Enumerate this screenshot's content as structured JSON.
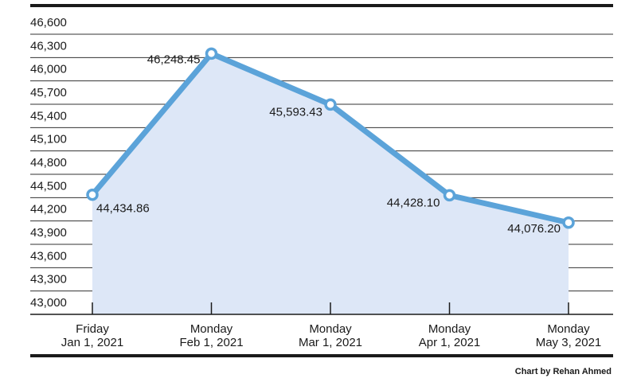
{
  "chart_data": {
    "type": "area",
    "title": "",
    "xlabel": "",
    "ylabel": "",
    "categories": [
      [
        "Friday",
        "Jan 1, 2021"
      ],
      [
        "Monday",
        "Feb 1, 2021"
      ],
      [
        "Monday",
        "Mar 1, 2021"
      ],
      [
        "Monday",
        "Apr 1, 2021"
      ],
      [
        "Monday",
        "May 3, 2021"
      ]
    ],
    "values": [
      44434.86,
      46248.45,
      45593.43,
      44428.1,
      44076.2
    ],
    "value_labels": [
      "44,434.86",
      "46,248.45",
      "45,593.43",
      "44,428.10",
      "44,076.20"
    ],
    "ylim": [
      43000,
      46600
    ],
    "yticks": [
      43000,
      43300,
      43600,
      43900,
      44200,
      44500,
      44800,
      45100,
      45400,
      45700,
      46000,
      46300,
      46600
    ],
    "ytick_labels": [
      "43,000",
      "43,300",
      "43,600",
      "43,900",
      "44,200",
      "44,500",
      "44,800",
      "45,100",
      "45,400",
      "45,700",
      "46,000",
      "46,300",
      "46,600"
    ],
    "grid": true,
    "colors": {
      "line": "#5ba3d9",
      "fill": "#dde7f7",
      "marker_fill": "#ffffff",
      "text": "#1a1a1a",
      "frame": "#1a1a1a"
    }
  },
  "credit": "Chart by Rehan Ahmed"
}
